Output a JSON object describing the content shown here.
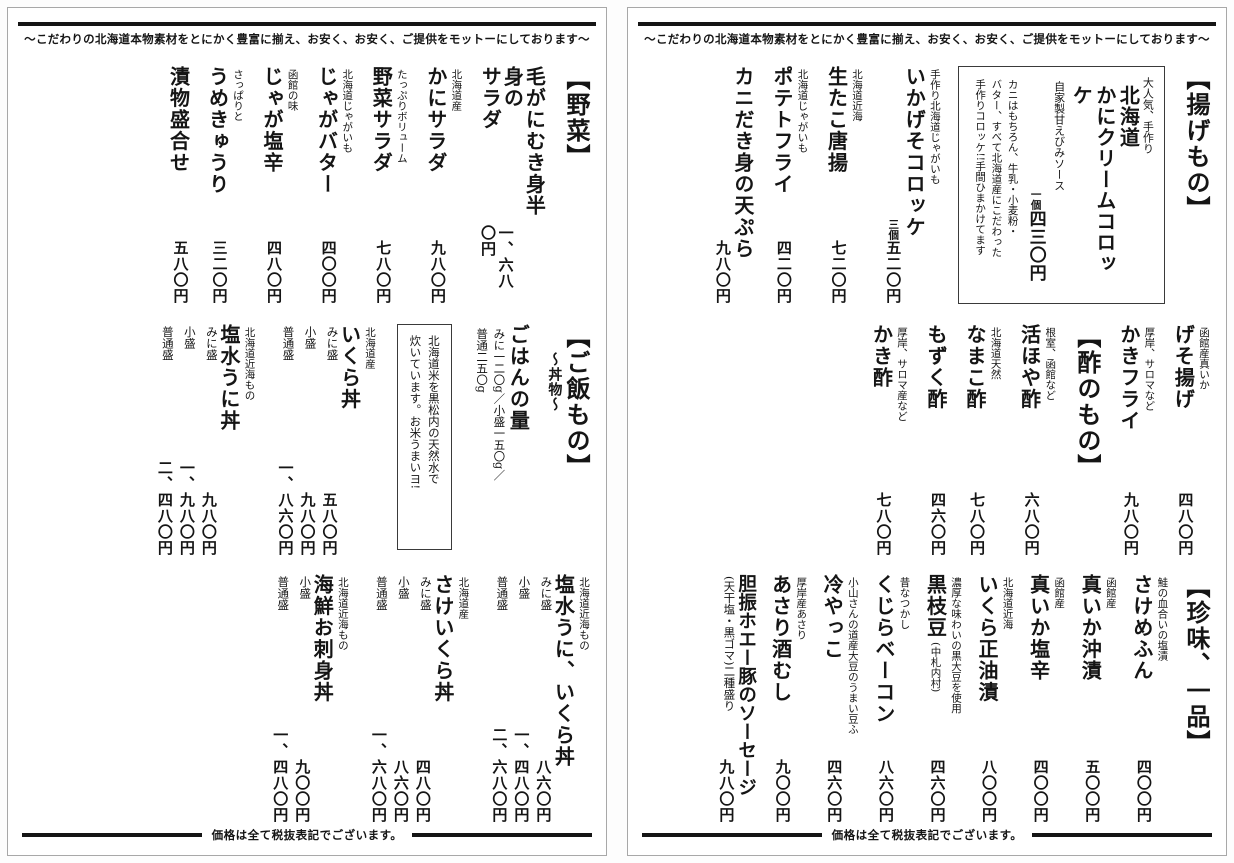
{
  "motto": "〜こだわりの北海道本物素材をとにかく豊富に揃え、お安く、お安く、ご提供をモットーにしております〜",
  "footer": "価格は全て税抜表記でございます。",
  "left": {
    "veg": {
      "title": "【野菜】",
      "items": [
        {
          "note": "",
          "name": "毛がにむき身半身の\nサラダ",
          "price": "一、六八〇円"
        },
        {
          "note": "北海道産",
          "name": "かにサラダ",
          "price": "九八〇円"
        },
        {
          "note": "たっぷりボリューム",
          "name": "野菜サラダ",
          "price": "七八〇円"
        },
        {
          "note": "北海道じゃがいも",
          "name": "じゃがバター",
          "price": "四〇〇円"
        },
        {
          "note": "函館の味",
          "name": "じゃが塩辛",
          "price": "四八〇円"
        },
        {
          "note": "さっぱりと",
          "name": "うめきゅうり",
          "price": "三二〇円"
        },
        {
          "note": "",
          "name": "漬物盛合せ",
          "price": "五八〇円"
        }
      ]
    },
    "rice": {
      "title": "【ご飯もの】",
      "subtitle": "〜丼物〜",
      "gohan": {
        "name": "ごはんの量",
        "amounts": "みに一二〇g／小盛一五〇g／\n普通二五〇g"
      },
      "rice_note": "北海道米を黒松内の天然水で\n炊いています。お米うまいヨ!",
      "items": [
        {
          "note": "北海道産",
          "name": "いくら丼",
          "sizes": [
            {
              "label": "みに盛",
              "price": "五八〇円"
            },
            {
              "label": "小盛",
              "price": "九八〇円"
            },
            {
              "label": "普通盛",
              "price": "一、八六〇円"
            }
          ]
        },
        {
          "note": "北海道近海もの",
          "name": "塩水うに丼",
          "sizes": [
            {
              "label": "みに盛",
              "price": "九八〇円"
            },
            {
              "label": "小盛",
              "price": "一、九八〇円"
            },
            {
              "label": "普通盛",
              "price": "二、四八〇円"
            }
          ]
        }
      ]
    },
    "don2": {
      "items": [
        {
          "note": "北海道近海もの",
          "name": "塩水うに、いくら丼",
          "sizes": [
            {
              "label": "みに盛",
              "price": "八六〇円"
            },
            {
              "label": "小盛",
              "price": "一、四八〇円"
            },
            {
              "label": "普通盛",
              "price": "二、六八〇円"
            }
          ]
        },
        {
          "note": "北海道産",
          "name": "さけいくら丼",
          "sizes": [
            {
              "label": "みに盛",
              "price": "四八〇円"
            },
            {
              "label": "小盛",
              "price": "八六〇円"
            },
            {
              "label": "普通盛",
              "price": "一、六八〇円"
            }
          ]
        },
        {
          "note": "北海道近海もの",
          "name": "海鮮お刺身丼",
          "sizes": [
            {
              "label": "小盛",
              "price": "九〇〇円"
            },
            {
              "label": "普通盛",
              "price": "一、四八〇円"
            }
          ]
        }
      ]
    }
  },
  "right": {
    "fried": {
      "title": "【揚げもの】",
      "box": {
        "top_note": "大人気、手作り",
        "name": "北海道\nかにクリームコロッケ",
        "sub_note": "自家製甘えびみソース",
        "unit": "一個",
        "price": "四三〇円",
        "desc": "カニはもちろん、牛乳・小麦粉・\nバター、すべて北海道産にこだわった\n手作りコロッケ!!手間ひまかけてます"
      },
      "items": [
        {
          "note": "手作り北海道じゃがいも",
          "name": "いかげそコロッケ",
          "unit": "三個",
          "price": "五二〇円"
        },
        {
          "note": "北海道近海",
          "name": "生たこ唐揚",
          "price": "七二〇円"
        },
        {
          "note": "北海道じゃがいも",
          "name": "ポテトフライ",
          "price": "四二〇円"
        },
        {
          "note": "",
          "name": "カニだき身の天ぷら",
          "price": "九八〇円"
        }
      ]
    },
    "fried2": {
      "items": [
        {
          "note": "函館産真いか",
          "name": "げそ揚げ",
          "price": "四八〇円"
        },
        {
          "note": "厚岸、サロマなど",
          "name": "かきフライ",
          "price": "九八〇円"
        }
      ]
    },
    "vinegar": {
      "title": "【酢のもの】",
      "items": [
        {
          "note": "根室、函館など",
          "name": "活ほや酢",
          "price": "六八〇円"
        },
        {
          "note": "北海道天然",
          "name": "なまこ酢",
          "price": "七八〇円"
        },
        {
          "note": "",
          "name": "もずく酢",
          "price": "四六〇円"
        },
        {
          "note": "厚岸、サロマ産など",
          "name": "かき酢",
          "price": "七八〇円"
        }
      ]
    },
    "delicacy": {
      "title": "【珍味、一品】",
      "items": [
        {
          "note": "鮭の血合いの塩漬",
          "name": "さけめふん",
          "price": "四〇〇円"
        },
        {
          "note": "函館産",
          "name": "真いか沖漬",
          "price": "五〇〇円"
        },
        {
          "note": "函館産",
          "name": "真いか塩辛",
          "price": "四〇〇円"
        },
        {
          "note": "北海道近海",
          "name": "いくら正油漬",
          "price": "八〇〇円"
        },
        {
          "note": "濃厚な味わいの黒大豆を使用",
          "name": "黒枝豆",
          "name_note": "(中札内村)",
          "price": "四六〇円"
        },
        {
          "note": "昔なつかし",
          "name": "くじらベーコン",
          "price": "八六〇円"
        },
        {
          "note": "小山さんの道産大豆のうまい豆ふ",
          "name": "冷やっこ",
          "price": "四六〇円"
        },
        {
          "note": "厚岸産あさり",
          "name": "あさり酒むし",
          "price": "九〇〇円"
        },
        {
          "note": "",
          "name": "胆振ホエー豚のソーセージ",
          "sub_label": "(天干塩・黒ゴマ)二種盛り",
          "price": "九八〇円"
        }
      ]
    }
  }
}
